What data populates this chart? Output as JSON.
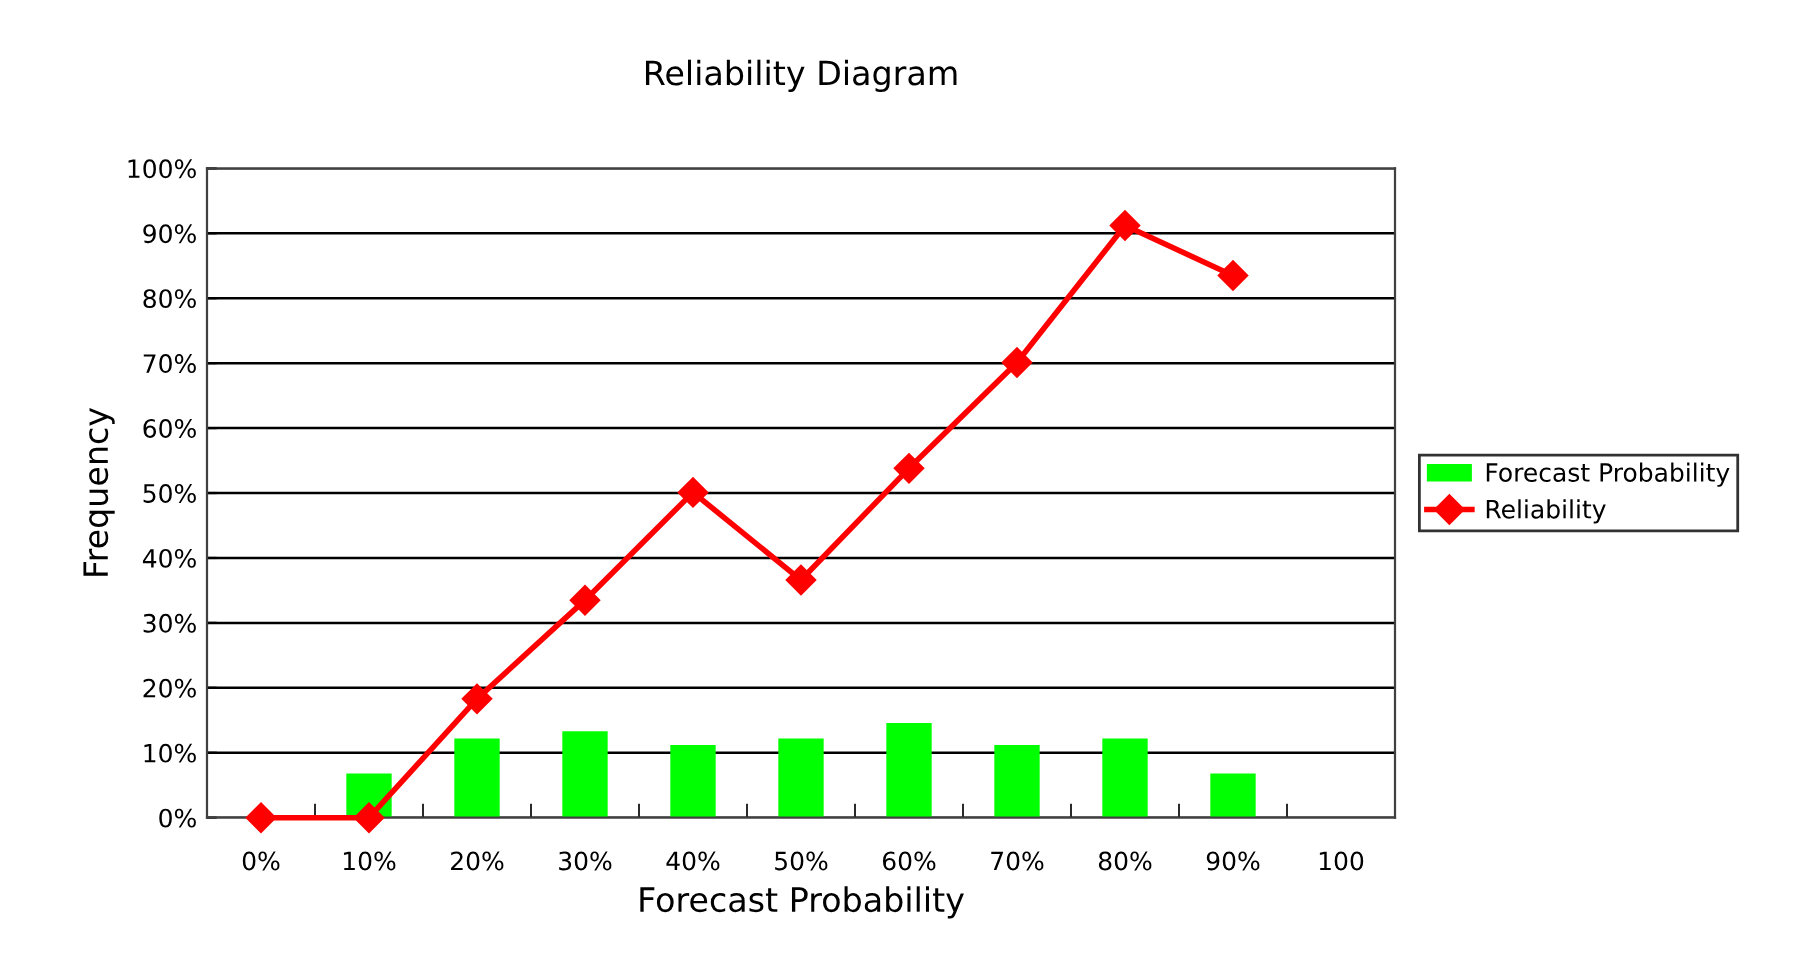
{
  "chart_data": {
    "type": "bar",
    "title": "Reliability Diagram",
    "xlabel": "Forecast Probability",
    "ylabel": "Frequency",
    "categories": [
      "0%",
      "10%",
      "20%",
      "30%",
      "40%",
      "50%",
      "60%",
      "70%",
      "80%",
      "90%",
      "100"
    ],
    "series": [
      {
        "name": "Forecast Probability",
        "color": "#00ff00",
        "values": [
          null,
          6.8,
          12.2,
          13.3,
          11.2,
          12.2,
          14.6,
          11.2,
          12.2,
          6.8,
          null
        ]
      },
      {
        "name": "Reliability",
        "type": "line",
        "color": "#ff0000",
        "marker": "diamond",
        "values": [
          0,
          0,
          18.3,
          33.5,
          50.1,
          36.6,
          53.8,
          70.1,
          91.2,
          83.5,
          null
        ]
      }
    ],
    "ylim": [
      0,
      100
    ],
    "yticks": [
      {
        "value": 0,
        "label": "0%"
      },
      {
        "value": 10,
        "label": "10%"
      },
      {
        "value": 20,
        "label": "20%"
      },
      {
        "value": 30,
        "label": "30%"
      },
      {
        "value": 40,
        "label": "40%"
      },
      {
        "value": 50,
        "label": "50%"
      },
      {
        "value": 60,
        "label": "60%"
      },
      {
        "value": 70,
        "label": "70%"
      },
      {
        "value": 80,
        "label": "80%"
      },
      {
        "value": 90,
        "label": "90%"
      },
      {
        "value": 100,
        "label": "100%"
      }
    ],
    "grid": "y",
    "legend": "right"
  }
}
